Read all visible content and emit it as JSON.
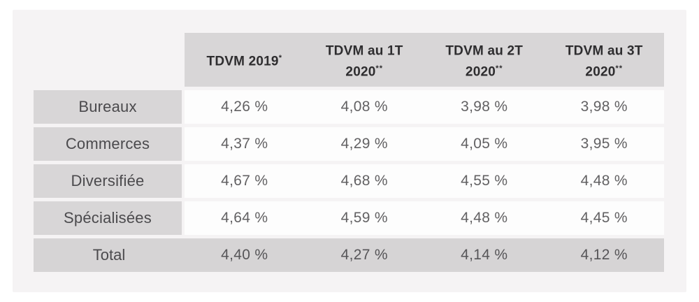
{
  "colors": {
    "panel_background": "#f5f3f4",
    "cell_gray": "#d8d6d7",
    "total_gray": "#d6d4d5",
    "data_cell_white": "#fdfdfd",
    "header_text": "#2e2d2f",
    "label_text": "#4b4a4d",
    "value_text": "#626163"
  },
  "table": {
    "columns": [
      {
        "line1": "",
        "line1_sup": "",
        "line2": "",
        "line2_sup": ""
      },
      {
        "line1": "TDVM 2019",
        "line1_sup": "*",
        "line2": "",
        "line2_sup": ""
      },
      {
        "line1": "TDVM au 1T",
        "line1_sup": "",
        "line2": "2020",
        "line2_sup": "**"
      },
      {
        "line1": "TDVM au 2T",
        "line1_sup": "",
        "line2": "2020",
        "line2_sup": "**"
      },
      {
        "line1": "TDVM au 3T",
        "line1_sup": "",
        "line2": "2020",
        "line2_sup": "**"
      }
    ],
    "rows": [
      {
        "label": "Bureaux",
        "values": [
          "4,26 %",
          "4,08 %",
          "3,98 %",
          "3,98 %"
        ]
      },
      {
        "label": "Commerces",
        "values": [
          "4,37 %",
          "4,29 %",
          "4,05 %",
          "3,95 %"
        ]
      },
      {
        "label": "Diversifiée",
        "values": [
          "4,67 %",
          "4,68 %",
          "4,55 %",
          "4,48 %"
        ]
      },
      {
        "label": "Spécialisées",
        "values": [
          "4,64 %",
          "4,59 %",
          "4,48 %",
          "4,45 %"
        ]
      }
    ],
    "total": {
      "label": "Total",
      "values": [
        "4,40 %",
        "4,27 %",
        "4,14 %",
        "4,12 %"
      ]
    }
  }
}
